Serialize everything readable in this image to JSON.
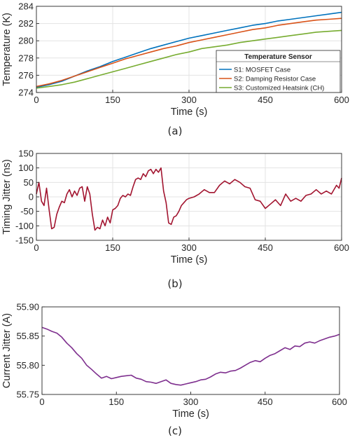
{
  "chart_data": [
    {
      "type": "line",
      "caption": "(a)",
      "xlabel": "Time (s)",
      "ylabel": "Temperature (K)",
      "xlim": [
        0,
        600
      ],
      "ylim": [
        274,
        284
      ],
      "xticks": [
        0,
        150,
        300,
        450,
        600
      ],
      "yticks": [
        274,
        276,
        278,
        280,
        282,
        284
      ],
      "grid": true,
      "legend_title": "Temperature Sensor",
      "legend_position": "bottom-right",
      "series": [
        {
          "name": "S1: MOSFET Case",
          "color": "#0072bd",
          "x": [
            0,
            25,
            50,
            75,
            100,
            125,
            150,
            175,
            200,
            225,
            250,
            275,
            300,
            325,
            350,
            375,
            400,
            425,
            450,
            475,
            500,
            525,
            550,
            575,
            600
          ],
          "y": [
            274.6,
            274.9,
            275.3,
            275.9,
            276.5,
            277.0,
            277.6,
            278.1,
            278.6,
            279.1,
            279.5,
            279.9,
            280.3,
            280.6,
            280.9,
            281.2,
            281.5,
            281.8,
            282.0,
            282.3,
            282.5,
            282.7,
            282.9,
            283.1,
            283.3
          ]
        },
        {
          "name": "S2: Damping Resistor Case",
          "color": "#d95319",
          "x": [
            0,
            25,
            50,
            75,
            100,
            125,
            150,
            175,
            200,
            225,
            250,
            275,
            300,
            325,
            350,
            375,
            400,
            425,
            450,
            475,
            500,
            525,
            550,
            575,
            600
          ],
          "y": [
            274.7,
            275.0,
            275.4,
            275.9,
            276.4,
            276.9,
            277.4,
            277.9,
            278.3,
            278.7,
            279.1,
            279.4,
            279.8,
            280.1,
            280.4,
            280.7,
            281.0,
            281.3,
            281.5,
            281.8,
            282.0,
            282.2,
            282.4,
            282.5,
            282.6
          ]
        },
        {
          "name": "S3: Customized Heatsink (CH)",
          "color": "#77ac30",
          "x": [
            0,
            25,
            50,
            75,
            100,
            125,
            150,
            175,
            200,
            225,
            250,
            275,
            300,
            325,
            350,
            375,
            400,
            425,
            450,
            475,
            500,
            525,
            550,
            575,
            600
          ],
          "y": [
            274.5,
            274.7,
            274.9,
            275.2,
            275.6,
            276.0,
            276.4,
            276.8,
            277.2,
            277.6,
            278.0,
            278.4,
            278.7,
            279.1,
            279.3,
            279.5,
            279.8,
            280.0,
            280.2,
            280.4,
            280.6,
            280.8,
            281.0,
            281.1,
            281.2
          ]
        }
      ]
    },
    {
      "type": "line",
      "caption": "(b)",
      "xlabel": "Time (s)",
      "ylabel": "Timing Jitter (ns)",
      "xlim": [
        0,
        600
      ],
      "ylim": [
        -150,
        150
      ],
      "xticks": [
        0,
        150,
        300,
        450,
        600
      ],
      "yticks": [
        -150,
        -100,
        -50,
        0,
        50,
        100,
        150
      ],
      "grid": true,
      "series": [
        {
          "color": "#a2142f",
          "x": [
            0,
            5,
            10,
            15,
            20,
            25,
            30,
            35,
            40,
            45,
            50,
            55,
            60,
            65,
            70,
            75,
            80,
            85,
            90,
            95,
            100,
            105,
            110,
            115,
            120,
            125,
            130,
            135,
            140,
            145,
            150,
            155,
            160,
            165,
            170,
            175,
            180,
            185,
            190,
            195,
            200,
            205,
            210,
            215,
            220,
            225,
            230,
            235,
            240,
            245,
            250,
            255,
            260,
            265,
            270,
            275,
            280,
            285,
            290,
            295,
            300,
            310,
            320,
            330,
            340,
            350,
            360,
            370,
            380,
            390,
            400,
            410,
            420,
            430,
            440,
            450,
            460,
            470,
            480,
            490,
            500,
            510,
            520,
            530,
            540,
            550,
            560,
            570,
            580,
            590,
            595,
            600
          ],
          "y": [
            10,
            50,
            -15,
            -30,
            30,
            -45,
            -110,
            -105,
            -60,
            -35,
            -15,
            -20,
            10,
            25,
            0,
            20,
            5,
            30,
            35,
            -15,
            35,
            10,
            -60,
            -115,
            -105,
            -110,
            -80,
            -100,
            -70,
            -90,
            -45,
            -40,
            -30,
            -5,
            5,
            0,
            10,
            5,
            35,
            60,
            65,
            60,
            80,
            70,
            90,
            95,
            80,
            95,
            85,
            100,
            20,
            -20,
            -90,
            -95,
            -70,
            -65,
            -50,
            -30,
            -20,
            -10,
            -5,
            0,
            10,
            25,
            15,
            15,
            40,
            55,
            45,
            60,
            50,
            35,
            30,
            -10,
            -15,
            -40,
            -25,
            -10,
            -30,
            10,
            -15,
            -5,
            -15,
            5,
            10,
            25,
            10,
            20,
            10,
            40,
            30,
            65
          ]
        }
      ]
    },
    {
      "type": "line",
      "caption": "(c)",
      "xlabel": "Time (s)",
      "ylabel": "Current Jitter (A)",
      "xlim": [
        0,
        600
      ],
      "ylim": [
        55.75,
        55.9
      ],
      "xticks": [
        0,
        150,
        300,
        450,
        600
      ],
      "yticks": [
        55.75,
        55.8,
        55.85,
        55.9
      ],
      "ytick_labels": [
        "55.75",
        "55.80",
        "55.85",
        "55.90"
      ],
      "grid": false,
      "series": [
        {
          "color": "#7e2f8e",
          "x": [
            0,
            10,
            20,
            30,
            40,
            50,
            60,
            70,
            80,
            90,
            100,
            110,
            120,
            130,
            140,
            150,
            160,
            170,
            180,
            190,
            200,
            210,
            220,
            230,
            240,
            250,
            260,
            270,
            280,
            290,
            300,
            310,
            320,
            330,
            340,
            350,
            360,
            370,
            380,
            390,
            400,
            410,
            420,
            430,
            440,
            450,
            460,
            470,
            480,
            490,
            500,
            510,
            520,
            530,
            540,
            550,
            560,
            570,
            580,
            590,
            600
          ],
          "y": [
            55.865,
            55.862,
            55.858,
            55.855,
            55.848,
            55.838,
            55.83,
            55.82,
            55.812,
            55.8,
            55.793,
            55.785,
            55.778,
            55.781,
            55.777,
            55.779,
            55.781,
            55.782,
            55.783,
            55.778,
            55.776,
            55.772,
            55.771,
            55.769,
            55.772,
            55.775,
            55.769,
            55.767,
            55.766,
            55.768,
            55.77,
            55.772,
            55.775,
            55.776,
            55.78,
            55.785,
            55.788,
            55.787,
            55.79,
            55.791,
            55.795,
            55.8,
            55.805,
            55.808,
            55.806,
            55.812,
            55.817,
            55.82,
            55.825,
            55.83,
            55.827,
            55.833,
            55.832,
            55.838,
            55.84,
            55.838,
            55.842,
            55.845,
            55.848,
            55.85,
            55.853
          ]
        }
      ]
    }
  ]
}
